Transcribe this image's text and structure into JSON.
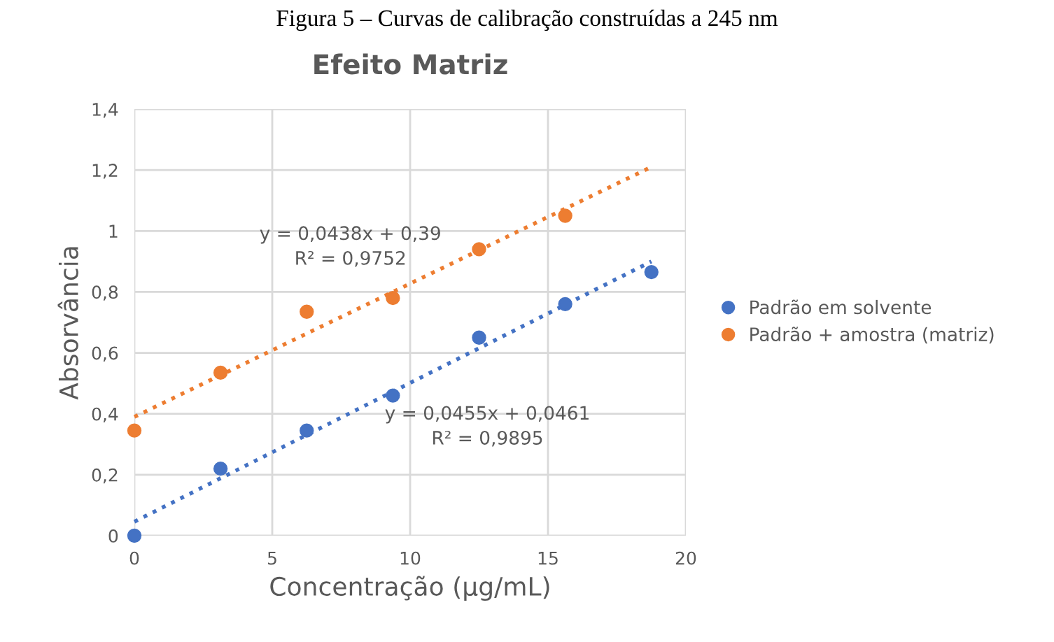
{
  "chart_data": {
    "type": "scatter",
    "title": "Efeito Matriz",
    "xlabel": "Concentração (µg/mL)",
    "ylabel": "Absorvância",
    "annotations": [
      "Figura 5 – Curvas de calibração construídas a 245 nm",
      "y = 0,0438x + 0,39\nR² = 0,9752",
      "y = 0,0455x + 0,0461\nR² = 0,9895"
    ],
    "x": [
      0,
      3.125,
      6.25,
      9.375,
      12.5,
      15.625,
      18.75
    ],
    "series": [
      {
        "name": "Padrão em solvente",
        "color": "#4472c4",
        "values": [
          0,
          0.22,
          0.345,
          0.46,
          0.65,
          0.76,
          0.865
        ]
      },
      {
        "name": "Padrão + amostra (matriz)",
        "color": "#ed7d31",
        "values": [
          0.345,
          0.535,
          0.735,
          0.78,
          0.94,
          1.05,
          null
        ]
      },
      {
        "type": "line",
        "color": "#4472c4",
        "values": [
          0.046,
          null,
          null,
          null,
          null,
          null,
          0.9
        ],
        "line_style": "dotted",
        "marker": "none"
      },
      {
        "type": "line",
        "color": "#ed7d31",
        "values": [
          0.39,
          null,
          null,
          null,
          null,
          null,
          1.21
        ],
        "line_style": "dotted",
        "marker": "none"
      }
    ],
    "xlim": [
      0,
      20
    ],
    "xticks": [
      0,
      5,
      10,
      15,
      20
    ],
    "ylim": [
      0,
      1.4
    ],
    "yticks": [
      0,
      {
        "value": 0.2,
        "label": "0,2"
      },
      {
        "value": 0.4,
        "label": "0,4"
      },
      {
        "value": 0.6,
        "label": "0,6"
      },
      {
        "value": 0.8,
        "label": "0,8"
      },
      1,
      {
        "value": 1.2,
        "label": "1,2"
      },
      {
        "value": 1.4,
        "label": "1,4"
      }
    ],
    "grid": true,
    "legend": "right",
    "marker": "circle"
  }
}
